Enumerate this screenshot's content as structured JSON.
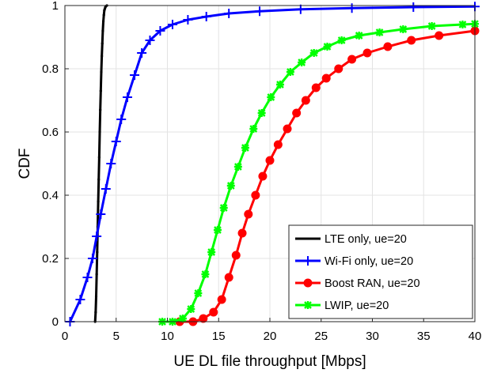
{
  "chart_data": {
    "type": "line",
    "title": "",
    "xlabel": "UE DL file throughput [Mbps]",
    "ylabel": "CDF",
    "xlim": [
      0,
      40
    ],
    "ylim": [
      0,
      1
    ],
    "xticks": [
      0,
      5,
      10,
      15,
      20,
      25,
      30,
      35,
      40
    ],
    "yticks": [
      0,
      0.2,
      0.4,
      0.6,
      0.8,
      1
    ],
    "ytick_labels": [
      "0",
      "0.2",
      "0.4",
      "0.6",
      "0.8",
      "1"
    ],
    "grid": true,
    "legend_position": "bottom-right",
    "series": [
      {
        "name": "LTE only, ue=20",
        "color": "#000000",
        "marker": "dot",
        "x": [
          2.95,
          3.0,
          3.05,
          3.1,
          3.15,
          3.2,
          3.25,
          3.3,
          3.35,
          3.4,
          3.45,
          3.5,
          3.55,
          3.6,
          3.65,
          3.7,
          3.75,
          3.8,
          3.85,
          3.9,
          3.95,
          4.0,
          4.1
        ],
        "y": [
          0.0,
          0.03,
          0.08,
          0.15,
          0.22,
          0.3,
          0.38,
          0.45,
          0.52,
          0.6,
          0.67,
          0.73,
          0.79,
          0.84,
          0.88,
          0.92,
          0.95,
          0.97,
          0.985,
          0.99,
          0.995,
          0.998,
          1.0
        ]
      },
      {
        "name": "Wi-Fi only, ue=20",
        "color": "#0000ff",
        "marker": "plus",
        "x": [
          0.5,
          1.5,
          2.2,
          2.7,
          3.1,
          3.5,
          4.0,
          4.5,
          5.0,
          5.5,
          6.1,
          6.8,
          7.5,
          8.3,
          9.3,
          10.5,
          12.0,
          13.8,
          16.0,
          19.0,
          23.0,
          28.0,
          34.0,
          40.0
        ],
        "y": [
          0.0,
          0.07,
          0.14,
          0.2,
          0.27,
          0.34,
          0.42,
          0.5,
          0.57,
          0.64,
          0.71,
          0.78,
          0.85,
          0.89,
          0.92,
          0.94,
          0.955,
          0.965,
          0.975,
          0.982,
          0.988,
          0.992,
          0.995,
          0.997
        ]
      },
      {
        "name": "Boost RAN, ue=20",
        "color": "#ff0000",
        "marker": "circle",
        "x": [
          11.2,
          12.5,
          13.5,
          14.5,
          15.3,
          16.0,
          16.7,
          17.3,
          17.9,
          18.6,
          19.3,
          20.0,
          20.8,
          21.7,
          22.6,
          23.5,
          24.5,
          25.5,
          26.7,
          28.0,
          29.5,
          31.5,
          33.8,
          36.5,
          40.0
        ],
        "y": [
          0.0,
          0.0,
          0.01,
          0.03,
          0.07,
          0.14,
          0.21,
          0.28,
          0.34,
          0.4,
          0.46,
          0.51,
          0.56,
          0.61,
          0.66,
          0.7,
          0.74,
          0.77,
          0.8,
          0.83,
          0.85,
          0.87,
          0.89,
          0.905,
          0.92
        ]
      },
      {
        "name": "LWIP, ue=20",
        "color": "#00ff00",
        "marker": "star",
        "x": [
          9.5,
          10.5,
          11.5,
          12.3,
          13.0,
          13.7,
          14.3,
          14.9,
          15.5,
          16.2,
          16.9,
          17.6,
          18.4,
          19.2,
          20.1,
          21.0,
          22.0,
          23.1,
          24.3,
          25.6,
          27.0,
          28.7,
          30.7,
          33.0,
          35.8,
          38.8,
          40.0
        ],
        "y": [
          0.0,
          0.0,
          0.01,
          0.04,
          0.09,
          0.15,
          0.22,
          0.29,
          0.36,
          0.43,
          0.49,
          0.55,
          0.61,
          0.66,
          0.71,
          0.75,
          0.79,
          0.82,
          0.85,
          0.87,
          0.89,
          0.905,
          0.915,
          0.925,
          0.935,
          0.94,
          0.942
        ]
      }
    ]
  }
}
